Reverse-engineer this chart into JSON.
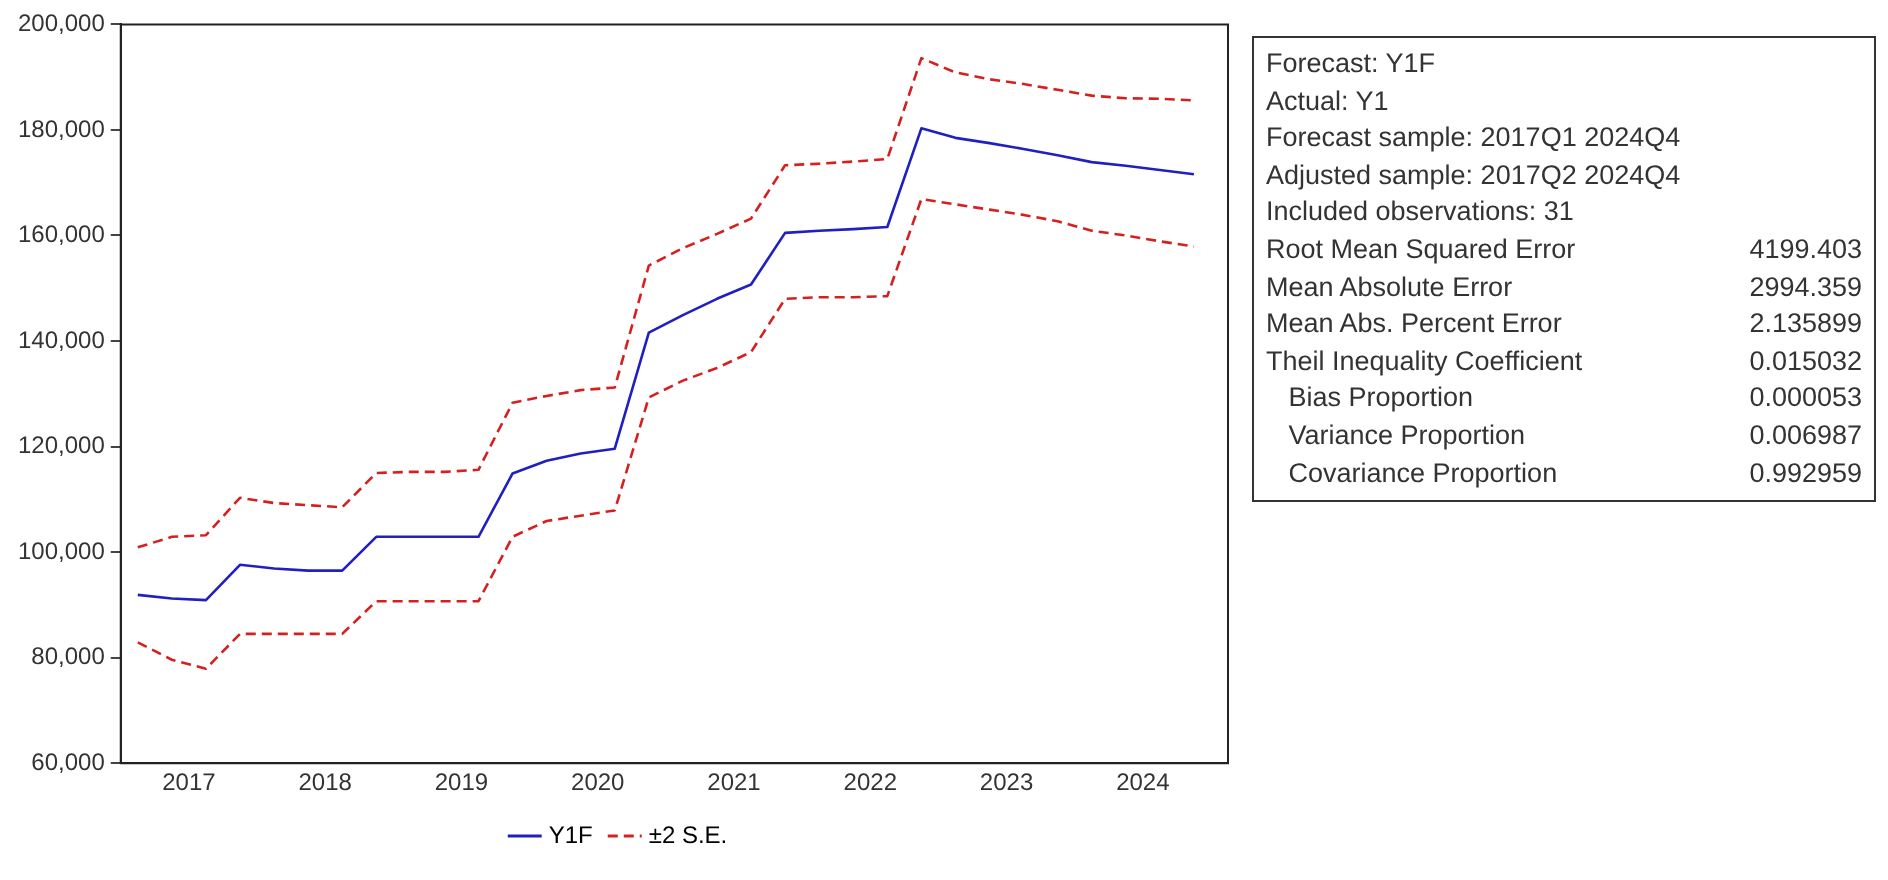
{
  "chart_data": {
    "type": "line",
    "x": [
      2017,
      2017.25,
      2017.5,
      2017.75,
      2018,
      2018.25,
      2018.5,
      2018.75,
      2019,
      2019.25,
      2019.5,
      2019.75,
      2020,
      2020.25,
      2020.5,
      2020.75,
      2021,
      2021.25,
      2021.5,
      2021.75,
      2022,
      2022.25,
      2022.5,
      2022.75,
      2023,
      2023.25,
      2023.5,
      2023.75,
      2024,
      2024.25,
      2024.5,
      2024.75
    ],
    "series": [
      {
        "name": "Y1F",
        "color": "#2020c0",
        "line_style": "solid",
        "values": [
          91900,
          91200,
          90900,
          97600,
          96900,
          96500,
          96500,
          102900,
          102900,
          102900,
          102900,
          114900,
          117300,
          118700,
          119600,
          141600,
          144900,
          148000,
          150700,
          160500,
          160900,
          161200,
          161600,
          180300,
          178500,
          177500,
          176400,
          175200,
          173900,
          173200,
          172400,
          171600
        ]
      },
      {
        "name": "±2 S.E.",
        "color": "#d62020",
        "line_style": "dashed",
        "values": [
          100900,
          102900,
          103200,
          110300,
          109300,
          108900,
          108500,
          115000,
          115200,
          115200,
          115600,
          128300,
          129600,
          130700,
          131200,
          154300,
          157600,
          160300,
          163200,
          173300,
          173600,
          174000,
          174500,
          193600,
          190900,
          189600,
          188700,
          187600,
          186500,
          186000,
          185900,
          185600
        ]
      },
      {
        "color": "#d62020",
        "line_style": "dashed",
        "values": [
          82900,
          79600,
          77900,
          84500,
          84500,
          84500,
          84500,
          90700,
          90700,
          90700,
          90700,
          102900,
          105900,
          106900,
          107900,
          129300,
          132500,
          134900,
          137900,
          148000,
          148300,
          148300,
          148500,
          166900,
          165900,
          164900,
          163900,
          162700,
          160900,
          160000,
          158900,
          157900
        ]
      }
    ],
    "xlim": [
      2016.875,
      2025
    ],
    "xticks": [
      {
        "value": 2017.375,
        "label": "2017"
      },
      {
        "value": 2018.375,
        "label": "2018"
      },
      {
        "value": 2019.375,
        "label": "2019"
      },
      {
        "value": 2020.375,
        "label": "2020"
      },
      {
        "value": 2021.375,
        "label": "2021"
      },
      {
        "value": 2022.375,
        "label": "2022"
      },
      {
        "value": 2023.375,
        "label": "2023"
      },
      {
        "value": 2024.375,
        "label": "2024"
      }
    ],
    "ylim": [
      60000,
      200000
    ],
    "yticks": [
      {
        "value": 60000,
        "label": "60,000"
      },
      {
        "value": 80000,
        "label": "80,000"
      },
      {
        "value": 100000,
        "label": "100,000"
      },
      {
        "value": 120000,
        "label": "120,000"
      },
      {
        "value": 140000,
        "label": "140,000"
      },
      {
        "value": 160000,
        "label": "160,000"
      },
      {
        "value": 180000,
        "label": "180,000"
      },
      {
        "value": 200000,
        "label": "200,000"
      }
    ],
    "grid": false,
    "legend": "bottom",
    "marker": "none",
    "annotations": [
      "Forecast: Y1F",
      "Actual: Y1",
      "Forecast sample: 2017Q1 2024Q4",
      "Adjusted sample: 2017Q2 2024Q4",
      "Included observations: 31",
      "Root Mean Squared Error\t4199.403",
      "Mean Absolute Error\t2994.359",
      "Mean Abs. Percent Error\t2.135899",
      "Theil Inequality Coefficient\t0.015032",
      "   Bias Proportion\t0.000053",
      "   Variance Proportion\t0.006987",
      "   Covariance Proportion\t0.992959"
    ]
  }
}
